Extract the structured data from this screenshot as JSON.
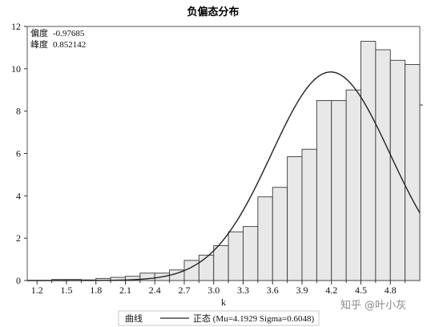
{
  "chart_data": {
    "type": "bar",
    "title": "负偏态分布",
    "xlabel": "k",
    "ylabel": "",
    "xlim": [
      1.1,
      5.1
    ],
    "ylim": [
      0,
      12
    ],
    "x_ticks": [
      "1.2",
      "1.5",
      "1.8",
      "2.1",
      "2.4",
      "2.7",
      "3.0",
      "3.3",
      "3.6",
      "3.9",
      "4.2",
      "4.5",
      "4.8"
    ],
    "y_ticks": [
      "0",
      "2",
      "4",
      "6",
      "8",
      "10",
      "12"
    ],
    "bin_width": 0.15,
    "bins": [
      {
        "start": 1.35,
        "value": 0.05
      },
      {
        "start": 1.5,
        "value": 0.05
      },
      {
        "start": 1.65,
        "value": 0.03
      },
      {
        "start": 1.8,
        "value": 0.1
      },
      {
        "start": 1.95,
        "value": 0.15
      },
      {
        "start": 2.1,
        "value": 0.2
      },
      {
        "start": 2.25,
        "value": 0.35
      },
      {
        "start": 2.4,
        "value": 0.35
      },
      {
        "start": 2.55,
        "value": 0.5
      },
      {
        "start": 2.7,
        "value": 0.95
      },
      {
        "start": 2.85,
        "value": 1.2
      },
      {
        "start": 3.0,
        "value": 1.65
      },
      {
        "start": 3.15,
        "value": 2.3
      },
      {
        "start": 3.3,
        "value": 2.55
      },
      {
        "start": 3.45,
        "value": 3.95
      },
      {
        "start": 3.6,
        "value": 4.4
      },
      {
        "start": 3.75,
        "value": 5.85
      },
      {
        "start": 3.9,
        "value": 6.2
      },
      {
        "start": 4.05,
        "value": 8.5
      },
      {
        "start": 4.2,
        "value": 8.5
      },
      {
        "start": 4.35,
        "value": 9.0
      },
      {
        "start": 4.5,
        "value": 11.3
      },
      {
        "start": 4.65,
        "value": 10.9
      },
      {
        "start": 4.8,
        "value": 10.4
      },
      {
        "start": 4.95,
        "value": 10.2
      }
    ],
    "curve": {
      "type": "normal",
      "mu": 4.1929,
      "sigma": 0.6048,
      "peak": 9.85
    },
    "stats": [
      {
        "label": "偏度",
        "value": "-0.97685"
      },
      {
        "label": "峰度",
        "value": "0.852142"
      }
    ],
    "legend": {
      "title": "曲线",
      "entry": "正态 (Mu=4.1929 Sigma=0.6048)",
      "placement": "bottom"
    },
    "colors": {
      "bar_fill": "#e8e8e8",
      "bar_stroke": "#3a3a3a",
      "curve": "#222222",
      "frame": "#555555"
    }
  },
  "watermark": "知乎 @叶小灰"
}
